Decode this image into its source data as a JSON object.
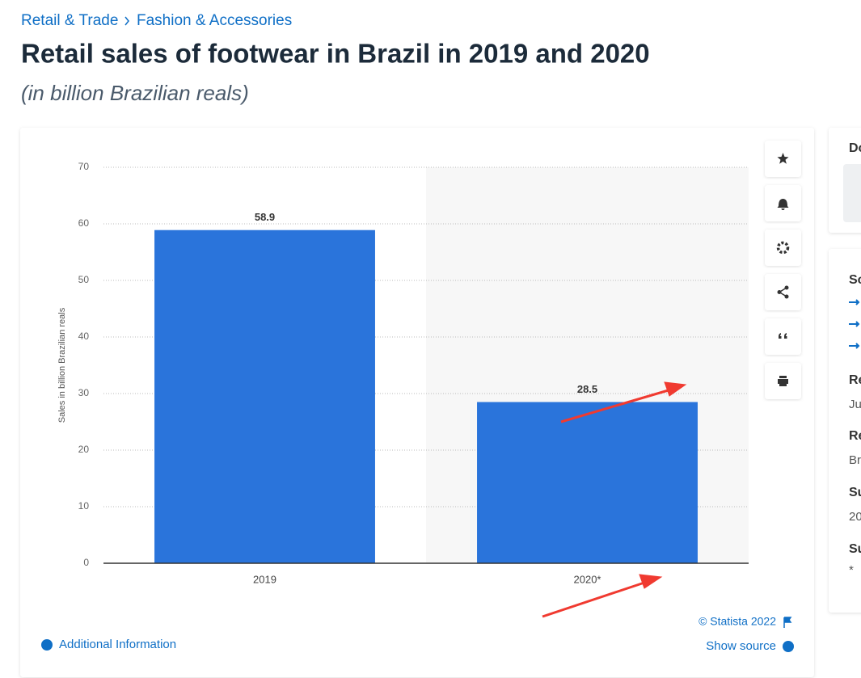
{
  "breadcrumb": [
    "Retail & Trade",
    "Fashion & Accessories"
  ],
  "header": {
    "title": "Retail sales of footwear in Brazil in 2019 and 2020",
    "subtitle": "(in billion Brazilian reals)"
  },
  "chart_data": {
    "type": "bar",
    "categories": [
      "2019",
      "2020*"
    ],
    "values": [
      58.9,
      28.5
    ],
    "color": "#2a74db",
    "y_label": "Sales in billion Brazilian reals",
    "ylim": [
      0,
      70
    ],
    "yticks": [
      0,
      10,
      20,
      30,
      40,
      50,
      60,
      70
    ],
    "grid": true
  },
  "footer": {
    "copyright": "© Statista 2022",
    "additional": "Additional Information",
    "source": "Show source"
  },
  "sidebar": {
    "top_heading": "Do",
    "sections": [
      {
        "heading": "So"
      },
      {
        "heading": "Re",
        "text": "Ju"
      },
      {
        "heading": "Re",
        "text": "Br"
      },
      {
        "heading": "Su",
        "text": "20"
      },
      {
        "heading": "Su",
        "text": "*"
      }
    ]
  }
}
